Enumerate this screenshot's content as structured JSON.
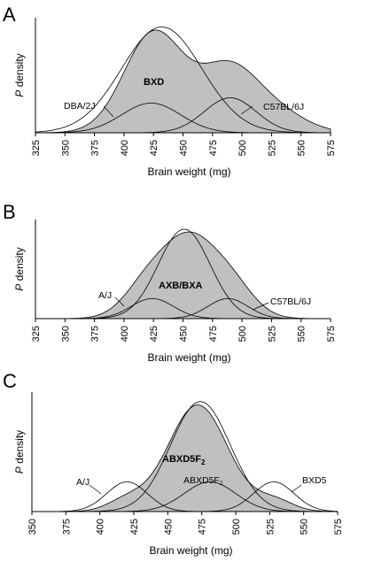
{
  "chart_data": [
    {
      "panel": "A",
      "type": "area",
      "xlabel": "Brain weight (mg)",
      "ylabel_italic": "P",
      "ylabel_rest": "density",
      "xlim": [
        325,
        575
      ],
      "ticks": [
        325,
        350,
        375,
        400,
        425,
        450,
        475,
        500,
        525,
        550,
        575
      ],
      "mixture": {
        "name": "BXD",
        "components": [
          {
            "mu": 425,
            "sd": 25,
            "w": 0.55
          },
          {
            "mu": 488,
            "sd": 25,
            "w": 0.35
          },
          {
            "mu": 530,
            "sd": 25,
            "w": 0.1
          }
        ]
      },
      "series": [
        {
          "name": "BXD",
          "mu": 432,
          "sd": 34,
          "peak": 1.0
        },
        {
          "name": "DBA/2J",
          "mu": 423,
          "sd": 25,
          "peak": 0.28
        },
        {
          "name": "C57BL/6J",
          "mu": 490,
          "sd": 22,
          "peak": 0.33
        }
      ]
    },
    {
      "panel": "B",
      "type": "area",
      "xlabel": "Brain weight (mg)",
      "ylabel_italic": "P",
      "ylabel_rest": "density",
      "xlim": [
        325,
        575
      ],
      "ticks": [
        325,
        350,
        375,
        400,
        425,
        450,
        475,
        500,
        525,
        550,
        575
      ],
      "mixture": {
        "name": "AXB/BXA",
        "components": [
          {
            "mu": 422,
            "sd": 20,
            "w": 0.27
          },
          {
            "mu": 455,
            "sd": 20,
            "w": 0.46
          },
          {
            "mu": 488,
            "sd": 20,
            "w": 0.27
          }
        ]
      },
      "series": [
        {
          "name": "AXB/BXA",
          "mu": 451,
          "sd": 22,
          "peak": 0.98
        },
        {
          "name": "A/J",
          "mu": 424,
          "sd": 18,
          "peak": 0.22
        },
        {
          "name": "C57BL/6J",
          "mu": 488,
          "sd": 17,
          "peak": 0.22
        }
      ]
    },
    {
      "panel": "C",
      "type": "area",
      "xlabel": "Brain weight (mg)",
      "ylabel_italic": "P",
      "ylabel_rest": "density",
      "xlim": [
        350,
        575
      ],
      "ticks": [
        350,
        375,
        400,
        425,
        450,
        475,
        500,
        525,
        550,
        575
      ],
      "mixture": {
        "name": "ABXD5F2",
        "components": [
          {
            "mu": 472,
            "sd": 22,
            "w": 0.88
          },
          {
            "mu": 420,
            "sd": 14,
            "w": 0.06
          },
          {
            "mu": 528,
            "sd": 14,
            "w": 0.06
          }
        ]
      },
      "series": [
        {
          "name": "ABXD5F2",
          "mu": 474,
          "sd": 22,
          "peak": 1.0
        },
        {
          "name": "A/J",
          "mu": 420,
          "sd": 15,
          "peak": 0.27
        },
        {
          "name": "ABXD5F1",
          "mu": 481,
          "sd": 19,
          "peak": 0.27
        },
        {
          "name": "BXD5",
          "mu": 528,
          "sd": 15,
          "peak": 0.27
        }
      ]
    }
  ],
  "labels": {
    "a_letter": "A",
    "b_letter": "B",
    "c_letter": "C",
    "a_bxd": "BXD",
    "a_dba": "DBA/2J",
    "a_c57": "C57BL/6J",
    "b_axb": "AXB/BXA",
    "b_aj": "A/J",
    "b_c57": "C57BL/6J",
    "c_f2_main": "ABXD5F",
    "c_f2_sub": "2",
    "c_aj": "A/J",
    "c_f1_main": "ABXD5F",
    "c_f1_sub": "1",
    "c_bxd5": "BXD5"
  }
}
